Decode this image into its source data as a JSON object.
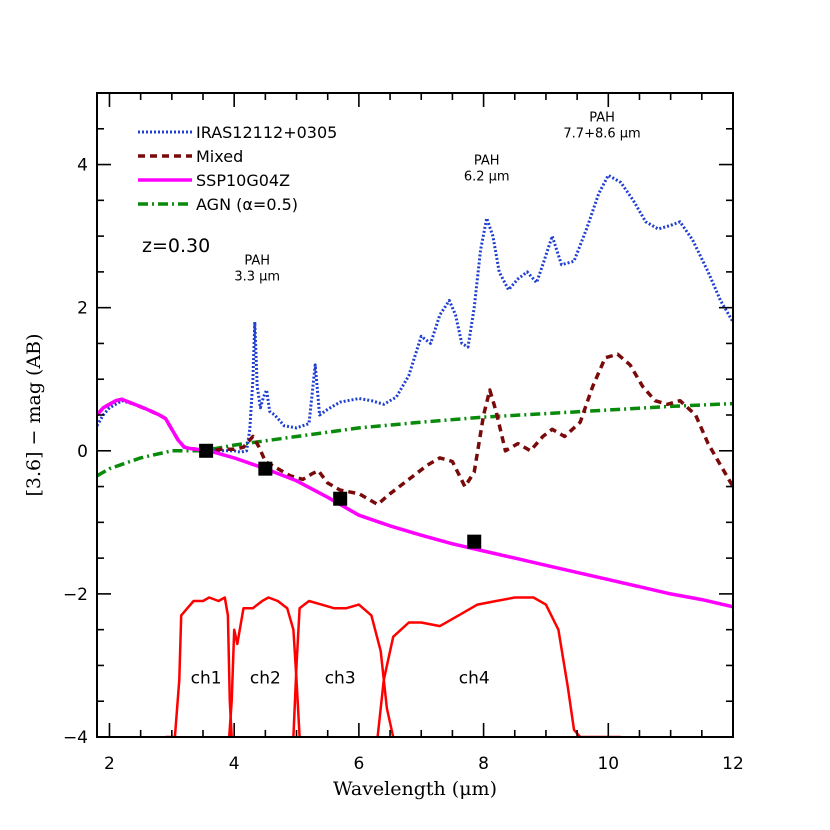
{
  "chart_data": {
    "type": "line",
    "xlabel": "Wavelength (μm)",
    "ylabel": "[3.6] − mag (AB)",
    "xlim": [
      1.8,
      12
    ],
    "ylim": [
      -4,
      5
    ],
    "x_ticks": [
      2,
      4,
      6,
      8,
      10,
      12
    ],
    "x_tick_labels": [
      "2",
      "4",
      "6",
      "8",
      "10",
      "12"
    ],
    "y_ticks": [
      -4,
      -2,
      0,
      2,
      4
    ],
    "y_tick_labels": [
      "−4",
      "−2",
      "0",
      "2",
      "4"
    ],
    "legend_position": "top-left",
    "redshift_label": "z=0.30",
    "series": [
      {
        "name": "IRAS12112+0305",
        "color": "#1f3fd0",
        "style": "dotted",
        "points": [
          [
            1.8,
            0.35
          ],
          [
            1.9,
            0.5
          ],
          [
            2.0,
            0.6
          ],
          [
            2.1,
            0.65
          ],
          [
            2.2,
            0.7
          ],
          [
            2.4,
            0.65
          ],
          [
            2.6,
            0.58
          ],
          [
            2.8,
            0.5
          ],
          [
            2.9,
            0.45
          ],
          [
            3.0,
            0.3
          ],
          [
            3.1,
            0.15
          ],
          [
            3.2,
            0.05
          ],
          [
            3.3,
            0.03
          ],
          [
            3.4,
            0.02
          ],
          [
            3.5,
            0.0
          ],
          [
            3.6,
            0.0
          ],
          [
            3.8,
            0.0
          ],
          [
            4.0,
            0.0
          ],
          [
            4.1,
            -0.02
          ],
          [
            4.2,
            0.0
          ],
          [
            4.25,
            0.3
          ],
          [
            4.3,
            1.0
          ],
          [
            4.33,
            1.8
          ],
          [
            4.37,
            0.9
          ],
          [
            4.42,
            0.6
          ],
          [
            4.47,
            0.75
          ],
          [
            4.52,
            0.85
          ],
          [
            4.57,
            0.55
          ],
          [
            4.65,
            0.5
          ],
          [
            4.8,
            0.35
          ],
          [
            5.0,
            0.32
          ],
          [
            5.2,
            0.38
          ],
          [
            5.3,
            1.2
          ],
          [
            5.37,
            0.5
          ],
          [
            5.5,
            0.58
          ],
          [
            5.7,
            0.68
          ],
          [
            6.0,
            0.73
          ],
          [
            6.2,
            0.7
          ],
          [
            6.4,
            0.65
          ],
          [
            6.6,
            0.75
          ],
          [
            6.8,
            1.05
          ],
          [
            7.0,
            1.6
          ],
          [
            7.15,
            1.5
          ],
          [
            7.3,
            1.9
          ],
          [
            7.45,
            2.1
          ],
          [
            7.55,
            1.9
          ],
          [
            7.65,
            1.5
          ],
          [
            7.75,
            1.45
          ],
          [
            7.85,
            2.0
          ],
          [
            7.95,
            2.8
          ],
          [
            8.05,
            3.25
          ],
          [
            8.15,
            3.0
          ],
          [
            8.25,
            2.5
          ],
          [
            8.4,
            2.25
          ],
          [
            8.55,
            2.4
          ],
          [
            8.7,
            2.5
          ],
          [
            8.85,
            2.35
          ],
          [
            8.95,
            2.6
          ],
          [
            9.1,
            3.0
          ],
          [
            9.25,
            2.6
          ],
          [
            9.45,
            2.65
          ],
          [
            9.65,
            3.1
          ],
          [
            9.85,
            3.6
          ],
          [
            10.0,
            3.85
          ],
          [
            10.2,
            3.75
          ],
          [
            10.4,
            3.5
          ],
          [
            10.6,
            3.2
          ],
          [
            10.8,
            3.1
          ],
          [
            11.0,
            3.15
          ],
          [
            11.15,
            3.2
          ],
          [
            11.35,
            2.95
          ],
          [
            11.6,
            2.5
          ],
          [
            11.8,
            2.1
          ],
          [
            12.0,
            1.8
          ]
        ]
      },
      {
        "name": "Mixed",
        "color": "#7a0a0a",
        "style": "dashed",
        "points": [
          [
            1.8,
            0.5
          ],
          [
            1.9,
            0.6
          ],
          [
            2.0,
            0.65
          ],
          [
            2.1,
            0.7
          ],
          [
            2.2,
            0.72
          ],
          [
            2.4,
            0.65
          ],
          [
            2.6,
            0.58
          ],
          [
            2.8,
            0.5
          ],
          [
            2.9,
            0.45
          ],
          [
            3.0,
            0.3
          ],
          [
            3.1,
            0.15
          ],
          [
            3.2,
            0.05
          ],
          [
            3.3,
            0.03
          ],
          [
            3.4,
            0.02
          ],
          [
            3.5,
            0.0
          ],
          [
            3.6,
            0.0
          ],
          [
            3.8,
            0.02
          ],
          [
            4.0,
            0.02
          ],
          [
            4.15,
            0.05
          ],
          [
            4.3,
            0.2
          ],
          [
            4.4,
            0.05
          ],
          [
            4.5,
            -0.15
          ],
          [
            4.7,
            -0.25
          ],
          [
            4.9,
            -0.35
          ],
          [
            5.1,
            -0.4
          ],
          [
            5.25,
            -0.32
          ],
          [
            5.35,
            -0.28
          ],
          [
            5.5,
            -0.45
          ],
          [
            5.7,
            -0.55
          ],
          [
            6.0,
            -0.6
          ],
          [
            6.3,
            -0.75
          ],
          [
            6.5,
            -0.6
          ],
          [
            6.8,
            -0.4
          ],
          [
            7.1,
            -0.2
          ],
          [
            7.3,
            -0.1
          ],
          [
            7.5,
            -0.15
          ],
          [
            7.7,
            -0.5
          ],
          [
            7.85,
            -0.3
          ],
          [
            8.0,
            0.5
          ],
          [
            8.1,
            0.85
          ],
          [
            8.2,
            0.55
          ],
          [
            8.35,
            0.0
          ],
          [
            8.55,
            0.1
          ],
          [
            8.75,
            0.0
          ],
          [
            8.95,
            0.2
          ],
          [
            9.1,
            0.3
          ],
          [
            9.3,
            0.2
          ],
          [
            9.55,
            0.4
          ],
          [
            9.75,
            0.9
          ],
          [
            9.95,
            1.3
          ],
          [
            10.15,
            1.35
          ],
          [
            10.35,
            1.2
          ],
          [
            10.55,
            0.9
          ],
          [
            10.75,
            0.7
          ],
          [
            10.95,
            0.65
          ],
          [
            11.15,
            0.7
          ],
          [
            11.4,
            0.5
          ],
          [
            11.6,
            0.1
          ],
          [
            11.8,
            -0.2
          ],
          [
            12.0,
            -0.5
          ]
        ]
      },
      {
        "name": "SSP10G04Z",
        "color": "#ff00ff",
        "style": "solid",
        "points": [
          [
            1.8,
            0.5
          ],
          [
            1.9,
            0.6
          ],
          [
            2.0,
            0.65
          ],
          [
            2.1,
            0.7
          ],
          [
            2.2,
            0.72
          ],
          [
            2.4,
            0.65
          ],
          [
            2.6,
            0.58
          ],
          [
            2.8,
            0.5
          ],
          [
            2.9,
            0.45
          ],
          [
            3.0,
            0.3
          ],
          [
            3.1,
            0.15
          ],
          [
            3.2,
            0.05
          ],
          [
            3.3,
            0.03
          ],
          [
            3.4,
            0.02
          ],
          [
            3.5,
            0.0
          ],
          [
            3.6,
            0.0
          ],
          [
            4.0,
            -0.1
          ],
          [
            4.5,
            -0.25
          ],
          [
            5.0,
            -0.42
          ],
          [
            5.5,
            -0.65
          ],
          [
            6.0,
            -0.9
          ],
          [
            6.5,
            -1.05
          ],
          [
            7.0,
            -1.18
          ],
          [
            7.5,
            -1.3
          ],
          [
            8.0,
            -1.4
          ],
          [
            8.5,
            -1.5
          ],
          [
            9.0,
            -1.6
          ],
          [
            9.5,
            -1.7
          ],
          [
            10.0,
            -1.8
          ],
          [
            10.5,
            -1.9
          ],
          [
            11.0,
            -2.0
          ],
          [
            11.5,
            -2.08
          ],
          [
            12.0,
            -2.18
          ]
        ]
      },
      {
        "name": "AGN (α=0.5)",
        "color": "#0a8a0a",
        "style": "dashdot",
        "points": [
          [
            1.8,
            -0.35
          ],
          [
            2.0,
            -0.25
          ],
          [
            2.5,
            -0.1
          ],
          [
            3.0,
            0.0
          ],
          [
            3.5,
            0.0
          ],
          [
            4.0,
            0.08
          ],
          [
            5.0,
            0.2
          ],
          [
            6.0,
            0.32
          ],
          [
            7.0,
            0.4
          ],
          [
            8.0,
            0.47
          ],
          [
            9.0,
            0.52
          ],
          [
            10.0,
            0.57
          ],
          [
            11.0,
            0.62
          ],
          [
            12.0,
            0.66
          ]
        ]
      }
    ],
    "markers": {
      "color": "#000000",
      "points": [
        [
          3.55,
          0.0
        ],
        [
          4.5,
          -0.25
        ],
        [
          5.7,
          -0.67
        ],
        [
          7.85,
          -1.27
        ]
      ]
    },
    "filter_curves": {
      "color": "#ff0000",
      "channels": [
        {
          "label": "ch1",
          "label_x": 3.55,
          "points": [
            [
              2.9,
              -4.0
            ],
            [
              3.05,
              -4.0
            ],
            [
              3.12,
              -3.2
            ],
            [
              3.15,
              -2.3
            ],
            [
              3.25,
              -2.2
            ],
            [
              3.35,
              -2.1
            ],
            [
              3.5,
              -2.1
            ],
            [
              3.6,
              -2.05
            ],
            [
              3.75,
              -2.1
            ],
            [
              3.85,
              -2.05
            ],
            [
              3.9,
              -2.3
            ],
            [
              3.93,
              -3.5
            ],
            [
              3.96,
              -4.0
            ]
          ]
        },
        {
          "label": "ch2",
          "label_x": 4.5,
          "points": [
            [
              3.92,
              -4.0
            ],
            [
              3.96,
              -3.5
            ],
            [
              4.0,
              -2.5
            ],
            [
              4.05,
              -2.7
            ],
            [
              4.15,
              -2.2
            ],
            [
              4.3,
              -2.2
            ],
            [
              4.45,
              -2.1
            ],
            [
              4.55,
              -2.05
            ],
            [
              4.7,
              -2.1
            ],
            [
              4.85,
              -2.2
            ],
            [
              4.95,
              -2.5
            ],
            [
              5.0,
              -3.2
            ],
            [
              5.05,
              -4.0
            ]
          ]
        },
        {
          "label": "ch3",
          "label_x": 5.7,
          "points": [
            [
              4.95,
              -4.0
            ],
            [
              5.0,
              -3.0
            ],
            [
              5.05,
              -2.2
            ],
            [
              5.2,
              -2.1
            ],
            [
              5.4,
              -2.15
            ],
            [
              5.6,
              -2.2
            ],
            [
              5.8,
              -2.2
            ],
            [
              6.0,
              -2.15
            ],
            [
              6.2,
              -2.3
            ],
            [
              6.35,
              -2.8
            ],
            [
              6.45,
              -3.6
            ],
            [
              6.55,
              -4.0
            ]
          ]
        },
        {
          "label": "ch4",
          "label_x": 7.85,
          "points": [
            [
              6.3,
              -4.0
            ],
            [
              6.4,
              -3.2
            ],
            [
              6.55,
              -2.6
            ],
            [
              6.8,
              -2.4
            ],
            [
              7.0,
              -2.4
            ],
            [
              7.3,
              -2.45
            ],
            [
              7.6,
              -2.3
            ],
            [
              7.9,
              -2.15
            ],
            [
              8.2,
              -2.1
            ],
            [
              8.5,
              -2.05
            ],
            [
              8.8,
              -2.05
            ],
            [
              9.0,
              -2.15
            ],
            [
              9.2,
              -2.5
            ],
            [
              9.35,
              -3.3
            ],
            [
              9.45,
              -3.9
            ],
            [
              9.55,
              -4.0
            ],
            [
              10.2,
              -4.0
            ]
          ]
        }
      ]
    },
    "annotations": [
      {
        "lines": [
          "PAH",
          "3.3 μm"
        ],
        "x": 4.37,
        "y": 2.6
      },
      {
        "lines": [
          "PAH",
          "6.2 μm"
        ],
        "x": 8.05,
        "y": 4.0
      },
      {
        "lines": [
          "PAH",
          "7.7+8.6 μm"
        ],
        "x": 9.9,
        "y": 4.6
      }
    ]
  }
}
